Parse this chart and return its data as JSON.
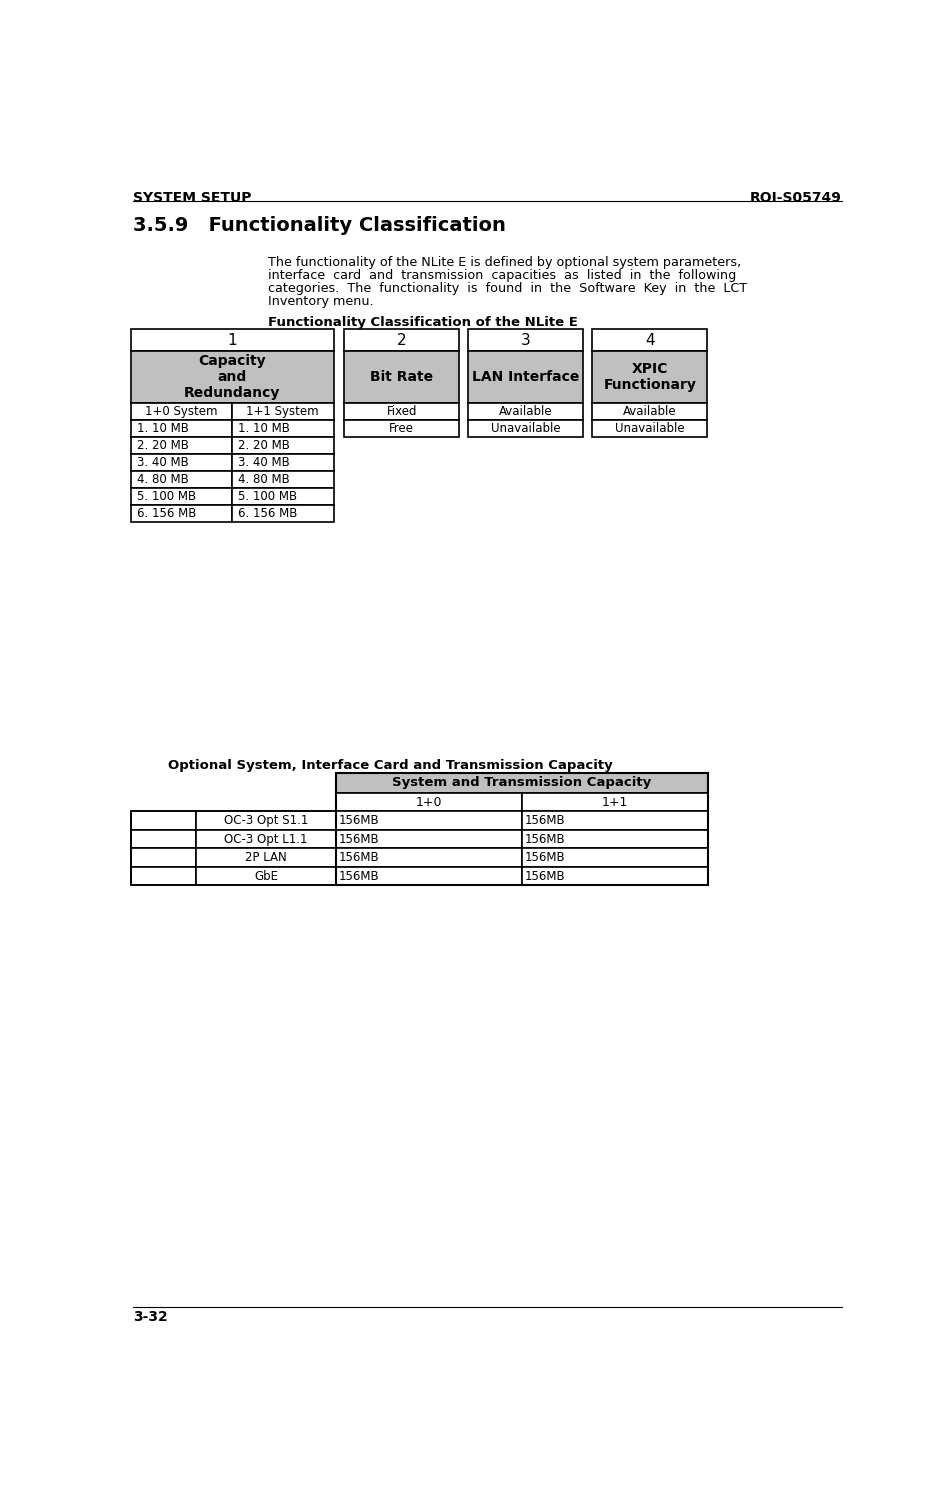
{
  "header_left": "SYSTEM SETUP",
  "header_right": "ROI-S05749",
  "section_title": "3.5.9   Functionality Classification",
  "body_lines": [
    "The functionality of the NLite E is defined by optional system parameters,",
    "interface  card  and  transmission  capacities  as  listed  in  the  following",
    "categories.  The  functionality  is  found  in  the  Software  Key  in  the  LCT",
    "Inventory menu."
  ],
  "table1_title": "Functionality Classification of the NLite E",
  "col_numbers": [
    "1",
    "2",
    "3",
    "4"
  ],
  "col_headers": [
    "Capacity\nand\nRedundancy",
    "Bit Rate",
    "LAN Interface",
    "XPIC\nFunctionary"
  ],
  "col1_subheaders": [
    "1+0 System",
    "1+1 System"
  ],
  "col1_rows": [
    [
      "1. 10 MB",
      "1. 10 MB"
    ],
    [
      "2. 20 MB",
      "2. 20 MB"
    ],
    [
      "3. 40 MB",
      "3. 40 MB"
    ],
    [
      "4. 80 MB",
      "4. 80 MB"
    ],
    [
      "5. 100 MB",
      "5. 100 MB"
    ],
    [
      "6. 156 MB",
      "6. 156 MB"
    ]
  ],
  "col2_rows": [
    "Fixed",
    "Free"
  ],
  "col3_rows": [
    "Available",
    "Unavailable"
  ],
  "col4_rows": [
    "Available",
    "Unavailable"
  ],
  "table2_title": "Optional System, Interface Card and Transmission Capacity",
  "table2_header": "System and Transmission Capacity",
  "table2_subheaders": [
    "1+0",
    "1+1"
  ],
  "table2_rows": [
    [
      "OC-3 Opt S1.1",
      "156MB",
      "156MB"
    ],
    [
      "OC-3 Opt L1.1",
      "156MB",
      "156MB"
    ],
    [
      "2P LAN",
      "156MB",
      "156MB"
    ],
    [
      "GbE",
      "156MB",
      "156MB"
    ]
  ],
  "gray_color": "#c0c0c0",
  "white": "#ffffff",
  "black": "#000000",
  "footer_left": "3-32",
  "bg_color": "#ffffff"
}
